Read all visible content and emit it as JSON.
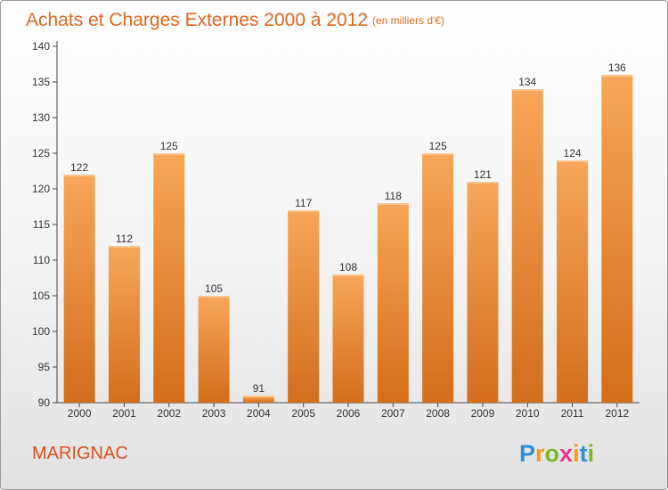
{
  "chart_data": {
    "type": "bar",
    "title": "Achats et Charges Externes 2000 à 2012",
    "subtitle": "(en milliers d'€)",
    "categories": [
      "2000",
      "2001",
      "2002",
      "2003",
      "2004",
      "2005",
      "2006",
      "2007",
      "2008",
      "2009",
      "2010",
      "2011",
      "2012"
    ],
    "values": [
      122,
      112,
      125,
      105,
      91,
      117,
      108,
      118,
      125,
      121,
      134,
      124,
      136
    ],
    "ylim": [
      90,
      140
    ],
    "yticks": [
      90,
      95,
      100,
      105,
      110,
      115,
      120,
      125,
      130,
      135,
      140
    ],
    "grid": false,
    "bar_color": "#f0903a"
  },
  "commune": "MARIGNAC",
  "logo": {
    "letters": [
      "P",
      "r",
      "o",
      "x",
      "i",
      "t",
      "i"
    ],
    "colors": [
      "#2e8fd6",
      "#f39c12",
      "#7ab828",
      "#e5388b",
      "#f39c12",
      "#2e8fd6",
      "#7ab828"
    ]
  }
}
